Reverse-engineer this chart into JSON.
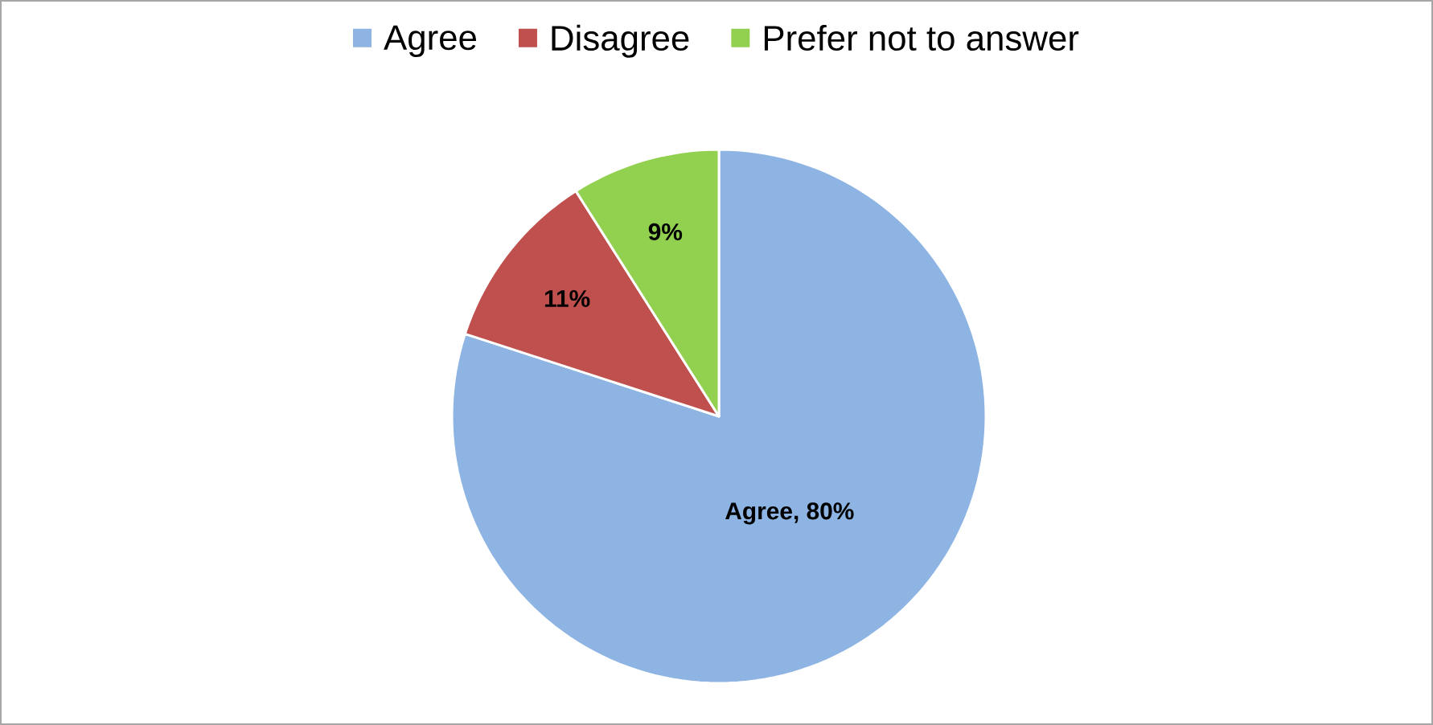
{
  "chart_data": {
    "type": "pie",
    "categories": [
      "Agree",
      "Disagree",
      "Prefer not to answer"
    ],
    "values": [
      80,
      11,
      9
    ],
    "colors": [
      "#8eb4e3",
      "#c0504d",
      "#92d050"
    ],
    "value_labels": [
      "Agree, 80%",
      "11%",
      "9%"
    ],
    "legend": "top"
  }
}
